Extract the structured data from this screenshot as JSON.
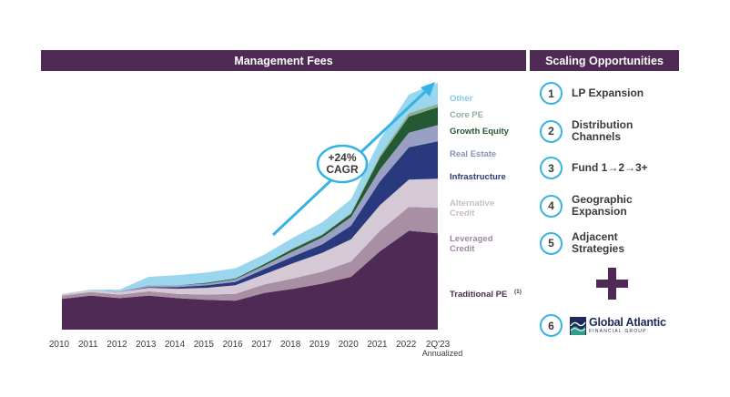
{
  "headers": {
    "left": "Management Fees",
    "right": "Scaling Opportunities"
  },
  "chart_data": {
    "type": "area",
    "stacked": true,
    "x": [
      "2010",
      "2011",
      "2012",
      "2013",
      "2014",
      "2015",
      "2016",
      "2017",
      "2018",
      "2019",
      "2020",
      "2021",
      "2022",
      "2Q'23"
    ],
    "x_sublabel": {
      "2Q'23": "Annualized"
    },
    "series": [
      {
        "name": "Traditional PE",
        "color": "#4f2a54",
        "values": [
          36,
          40,
          37,
          40,
          37,
          35,
          34,
          43,
          48,
          54,
          62,
          92,
          116,
          113
        ]
      },
      {
        "name": "Leveraged Credit",
        "color": "#a98fa3",
        "values": [
          4,
          4,
          4,
          5,
          5,
          6,
          8,
          10,
          12,
          14,
          18,
          24,
          28,
          30
        ]
      },
      {
        "name": "Alternative Credit",
        "color": "#d6c9d6",
        "values": [
          2,
          2,
          3,
          4,
          6,
          8,
          10,
          12,
          18,
          22,
          26,
          30,
          32,
          34
        ]
      },
      {
        "name": "Infrastructure",
        "color": "#283a7d",
        "values": [
          0,
          0,
          0,
          1,
          2,
          3,
          4,
          6,
          8,
          10,
          16,
          28,
          38,
          44
        ]
      },
      {
        "name": "Real Estate",
        "color": "#9aa0c4",
        "values": [
          0,
          0,
          1,
          2,
          2,
          2,
          3,
          4,
          6,
          8,
          10,
          14,
          17,
          19
        ]
      },
      {
        "name": "Growth Equity",
        "color": "#235a33",
        "values": [
          0,
          0,
          0,
          0,
          0,
          1,
          1,
          2,
          3,
          3,
          4,
          14,
          19,
          21
        ]
      },
      {
        "name": "Core PE",
        "color": "#8fae97",
        "values": [
          0,
          0,
          0,
          0,
          0,
          0,
          0,
          0,
          1,
          1,
          1,
          3,
          4,
          4
        ]
      },
      {
        "name": "Other",
        "color": "#9ad7ef",
        "values": [
          0,
          1,
          2,
          10,
          12,
          12,
          12,
          11,
          12,
          14,
          16,
          18,
          22,
          25
        ]
      }
    ],
    "legend_labels": [
      "Other",
      "Core PE",
      "Growth Equity",
      "Real Estate",
      "Infrastructure",
      "Alternative Credit",
      "Leveraged Credit",
      "Traditional PE"
    ],
    "traditional_pe_superscript": "(1)",
    "annotation": "+24% CAGR",
    "annotation_lines": [
      "+24%",
      "CAGR"
    ],
    "legend_placement": "right",
    "grid": false
  },
  "opportunities": [
    {
      "num": "1",
      "label": "LP Expansion"
    },
    {
      "num": "2",
      "label": "Distribution Channels"
    },
    {
      "num": "3",
      "label": "Fund 1→2→3+"
    },
    {
      "num": "4",
      "label": "Geographic Expansion"
    },
    {
      "num": "5",
      "label": "Adjacent Strategies"
    },
    {
      "num": "6",
      "label": ""
    }
  ],
  "logo": {
    "name": "Global Atlantic",
    "sub": "FINANCIAL GROUP"
  }
}
